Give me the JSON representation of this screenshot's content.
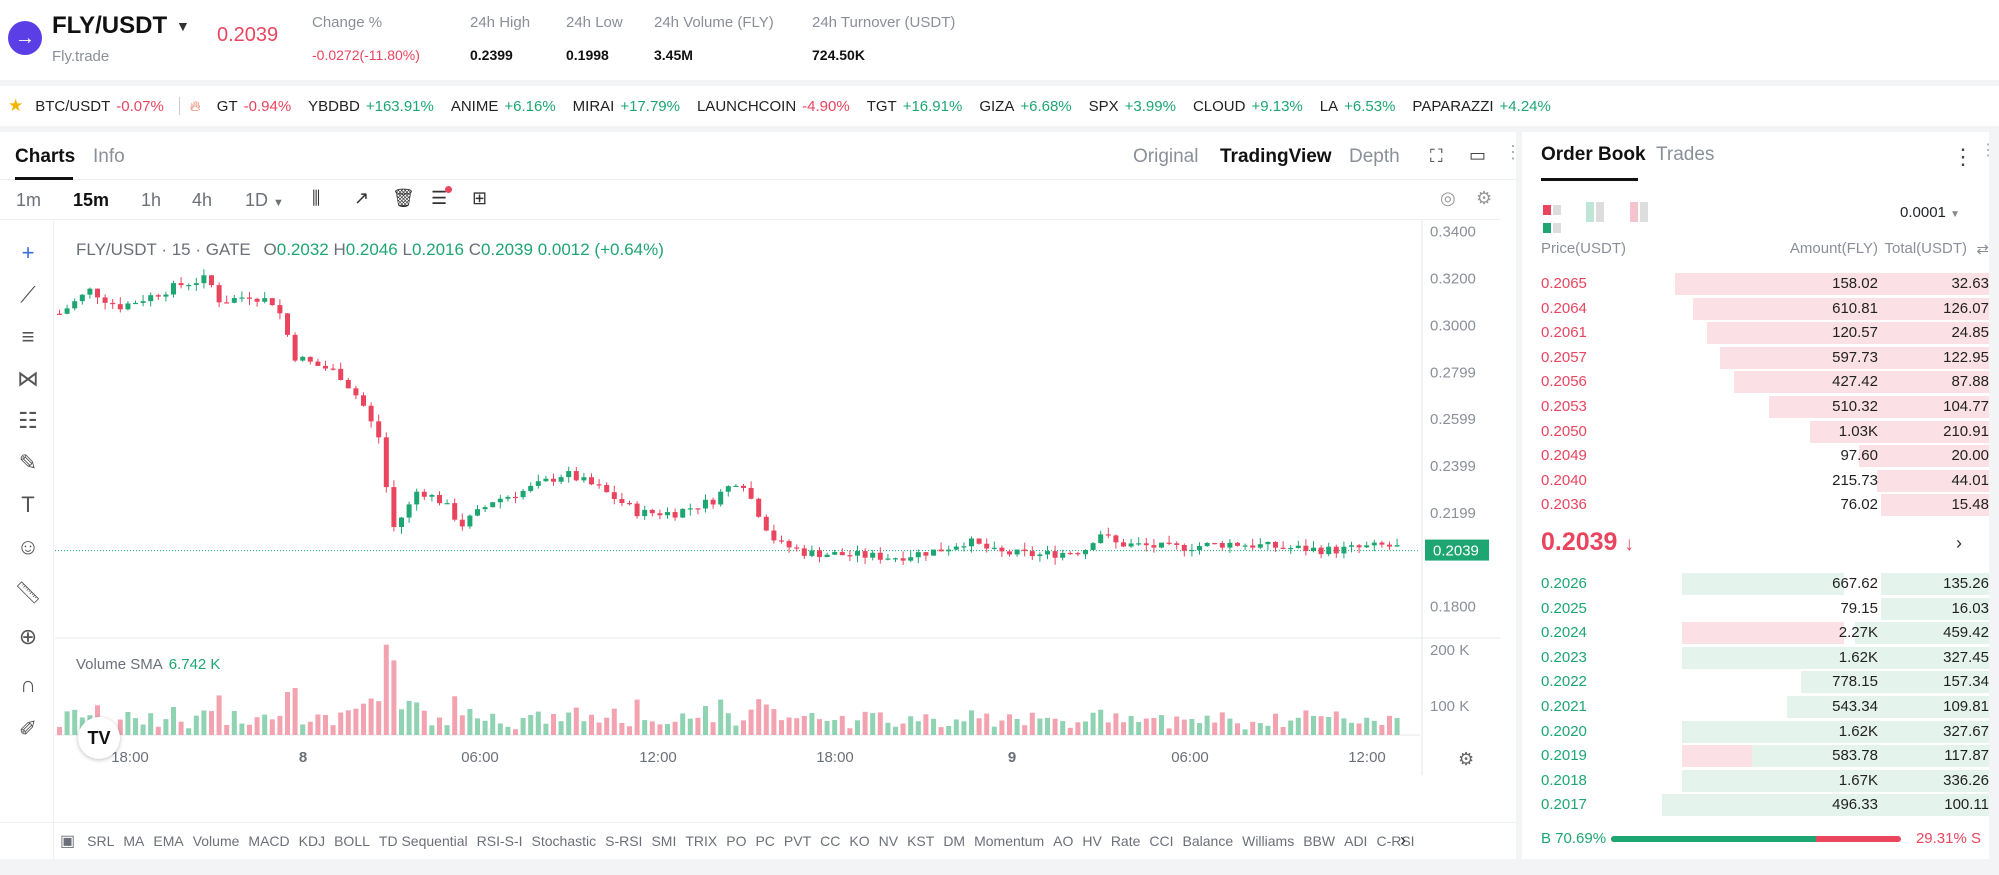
{
  "header": {
    "pair": "FLY/USDT",
    "exchange": "Fly.trade",
    "last_price": "0.2039",
    "stats": [
      {
        "label": "Change %",
        "value": "-0.0272(-11.80%)",
        "color": "red"
      },
      {
        "label": "24h High",
        "value": "0.2399",
        "color": "dark"
      },
      {
        "label": "24h Low",
        "value": "0.1998",
        "color": "dark"
      },
      {
        "label": "24h Volume (FLY)",
        "value": "3.45M",
        "color": "dark"
      },
      {
        "label": "24h Turnover (USDT)",
        "value": "724.50K",
        "color": "dark"
      }
    ]
  },
  "ticker": [
    {
      "symbol": "BTC/USDT",
      "change": "-0.07%",
      "dir": "down"
    },
    {
      "symbol": "GT",
      "change": "-0.94%",
      "dir": "down"
    },
    {
      "symbol": "YBDBD",
      "change": "+163.91%",
      "dir": "up"
    },
    {
      "symbol": "ANIME",
      "change": "+6.16%",
      "dir": "up"
    },
    {
      "symbol": "MIRAI",
      "change": "+17.79%",
      "dir": "up"
    },
    {
      "symbol": "LAUNCHCOIN",
      "change": "-4.90%",
      "dir": "down"
    },
    {
      "symbol": "TGT",
      "change": "+16.91%",
      "dir": "up"
    },
    {
      "symbol": "GIZA",
      "change": "+6.68%",
      "dir": "up"
    },
    {
      "symbol": "SPX",
      "change": "+3.99%",
      "dir": "up"
    },
    {
      "symbol": "CLOUD",
      "change": "+9.13%",
      "dir": "up"
    },
    {
      "symbol": "LA",
      "change": "+6.53%",
      "dir": "up"
    },
    {
      "symbol": "PAPARAZZI",
      "change": "+4.24%",
      "dir": "up"
    }
  ],
  "chart_tabs": {
    "charts": "Charts",
    "info": "Info"
  },
  "view_tabs": {
    "original": "Original",
    "tradingview": "TradingView",
    "depth": "Depth"
  },
  "intervals": [
    "1m",
    "15m",
    "1h",
    "4h",
    "1D"
  ],
  "active_interval": "15m",
  "ohlc": {
    "symbol": "FLY/USDT · 15 · GATE",
    "o_label": "O",
    "o": "0.2032",
    "h_label": "H",
    "h": "0.2046",
    "l_label": "L",
    "l": "0.2016",
    "c_label": "C",
    "c": "0.2039",
    "change": "0.0012 (+0.64%)"
  },
  "volume": {
    "label": "Volume SMA",
    "value": "6.742 K"
  },
  "chart_data": {
    "type": "candlestick",
    "y_ticks": [
      "0.3400",
      "0.3200",
      "0.3000",
      "0.2799",
      "0.2599",
      "0.2399",
      "0.2199",
      "0.1800"
    ],
    "price_label": "0.2039",
    "ylim": [
      0.17,
      0.345
    ],
    "volume_ticks": [
      "200 K",
      "100 K"
    ],
    "x_ticks": [
      "18:00",
      "8",
      "06:00",
      "12:00",
      "18:00",
      "9",
      "06:00",
      "12:00"
    ]
  },
  "indicators": [
    "SRL",
    "MA",
    "EMA",
    "Volume",
    "MACD",
    "KDJ",
    "BOLL",
    "TD Sequential",
    "RSI-S-I",
    "Stochastic",
    "S-RSI",
    "SMI",
    "TRIX",
    "PO",
    "PC",
    "PVT",
    "CC",
    "KO",
    "NV",
    "KST",
    "DM",
    "Momentum",
    "AO",
    "HV",
    "Rate",
    "CCI",
    "Balance",
    "Williams",
    "BBW",
    "ADI",
    "C-RSI"
  ],
  "orderbook": {
    "tab_book": "Order Book",
    "tab_trades": "Trades",
    "precision": "0.0001",
    "col_price": "Price(USDT)",
    "col_amount": "Amount(FLY)",
    "col_total": "Total(USDT)",
    "asks": [
      {
        "price": "0.2065",
        "amount": "158.02",
        "total": "32.63",
        "depth": 0.3
      },
      {
        "price": "0.2064",
        "amount": "610.81",
        "total": "126.07",
        "depth": 0.34
      },
      {
        "price": "0.2061",
        "amount": "120.57",
        "total": "24.85",
        "depth": 0.37
      },
      {
        "price": "0.2057",
        "amount": "597.73",
        "total": "122.95",
        "depth": 0.4
      },
      {
        "price": "0.2056",
        "amount": "427.42",
        "total": "87.88",
        "depth": 0.43
      },
      {
        "price": "0.2053",
        "amount": "510.32",
        "total": "104.77",
        "depth": 0.51
      },
      {
        "price": "0.2050",
        "amount": "1.03K",
        "total": "210.91",
        "depth": 0.6
      },
      {
        "price": "0.2049",
        "amount": "97.60",
        "total": "20.00",
        "depth": 0.71
      },
      {
        "price": "0.2040",
        "amount": "215.73",
        "total": "44.01",
        "depth": 0.75
      },
      {
        "price": "0.2036",
        "amount": "76.02",
        "total": "15.48",
        "depth": 0.76
      }
    ],
    "mid_price": "0.2039",
    "mid_arrow": "↓",
    "bids": [
      {
        "price": "0.2026",
        "amount": "667.62",
        "total": "135.26",
        "depth": 0.76,
        "highlight": "green"
      },
      {
        "price": "0.2025",
        "amount": "79.15",
        "total": "16.03",
        "depth": 0.76,
        "highlight": ""
      },
      {
        "price": "0.2024",
        "amount": "2.27K",
        "total": "459.42",
        "depth": 0.7,
        "highlight": "red"
      },
      {
        "price": "0.2023",
        "amount": "1.62K",
        "total": "327.45",
        "depth": 0.62,
        "highlight": "green"
      },
      {
        "price": "0.2022",
        "amount": "778.15",
        "total": "157.34",
        "depth": 0.58,
        "highlight": ""
      },
      {
        "price": "0.2021",
        "amount": "543.34",
        "total": "109.81",
        "depth": 0.55,
        "highlight": ""
      },
      {
        "price": "0.2020",
        "amount": "1.62K",
        "total": "327.67",
        "depth": 0.5,
        "highlight": "green"
      },
      {
        "price": "0.2019",
        "amount": "583.78",
        "total": "117.87",
        "depth": 0.47,
        "highlight": "red"
      },
      {
        "price": "0.2018",
        "amount": "1.67K",
        "total": "336.26",
        "depth": 0.36,
        "highlight": "green"
      },
      {
        "price": "0.2017",
        "amount": "496.33",
        "total": "100.11",
        "depth": 0.27,
        "highlight": "green"
      }
    ],
    "buy_ratio": "B 70.69%",
    "sell_ratio": "29.31% S",
    "buy_fraction": 0.7069
  },
  "colors": {
    "up": "#1ea672",
    "down": "#e9455f"
  }
}
